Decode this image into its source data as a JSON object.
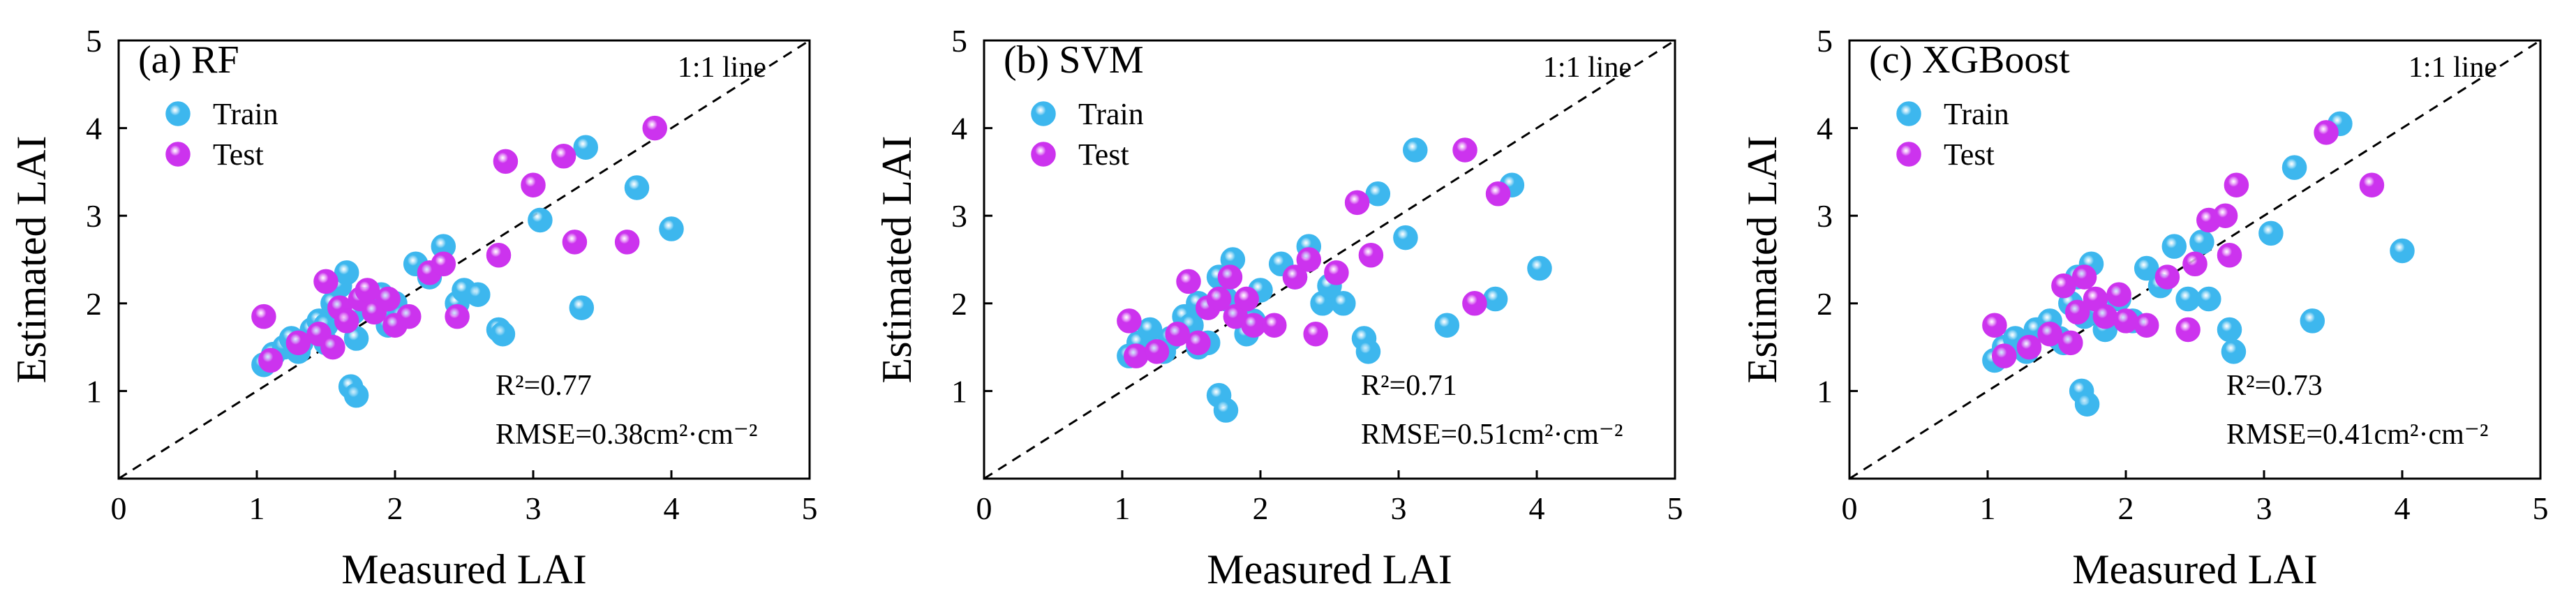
{
  "chart_data": [
    {
      "type": "scatter",
      "panel_label": "(a)",
      "title": "RF",
      "xlabel": "Measured LAI",
      "ylabel": "Estimated LAI",
      "xlim": [
        0,
        5
      ],
      "ylim": [
        0,
        5
      ],
      "ticks": [
        0,
        1,
        2,
        3,
        4,
        5
      ],
      "x_tick_labels": [
        "0",
        "1",
        "2",
        "3",
        "4",
        "5"
      ],
      "y_tick_labels": [
        "1",
        "2",
        "3",
        "4",
        "5"
      ],
      "reference_line": "1:1 line",
      "r2": "R²=0.77",
      "rmse": "RMSE=0.38cm²·cm⁻²",
      "series": [
        {
          "name": "Train",
          "color": "#3db7ee",
          "points": [
            [
              1.05,
              1.3
            ],
            [
              1.12,
              1.42
            ],
            [
              1.2,
              1.5
            ],
            [
              1.25,
              1.6
            ],
            [
              1.32,
              1.55
            ],
            [
              1.4,
              1.7
            ],
            [
              1.45,
              1.8
            ],
            [
              1.5,
              1.75
            ],
            [
              1.55,
              2.0
            ],
            [
              1.6,
              2.2
            ],
            [
              1.65,
              2.35
            ],
            [
              1.7,
              1.9
            ],
            [
              1.72,
              1.6
            ],
            [
              1.78,
              2.05
            ],
            [
              1.85,
              1.95
            ],
            [
              1.9,
              2.1
            ],
            [
              1.95,
              1.75
            ],
            [
              2.0,
              2.0
            ],
            [
              2.05,
              1.85
            ],
            [
              2.15,
              2.45
            ],
            [
              2.25,
              2.3
            ],
            [
              2.35,
              2.65
            ],
            [
              2.45,
              2.0
            ],
            [
              2.5,
              2.15
            ],
            [
              2.6,
              2.1
            ],
            [
              2.75,
              1.7
            ],
            [
              2.78,
              1.65
            ],
            [
              3.05,
              2.95
            ],
            [
              3.35,
              1.95
            ],
            [
              3.38,
              3.78
            ],
            [
              3.75,
              3.32
            ],
            [
              4.0,
              2.85
            ],
            [
              1.68,
              1.05
            ],
            [
              1.72,
              0.95
            ],
            [
              1.3,
              1.45
            ],
            [
              1.5,
              1.55
            ]
          ]
        },
        {
          "name": "Test",
          "color": "#cc33ee",
          "points": [
            [
              1.05,
              1.85
            ],
            [
              1.1,
              1.35
            ],
            [
              1.3,
              1.55
            ],
            [
              1.45,
              1.65
            ],
            [
              1.5,
              2.25
            ],
            [
              1.55,
              1.5
            ],
            [
              1.6,
              1.95
            ],
            [
              1.65,
              1.8
            ],
            [
              1.75,
              2.05
            ],
            [
              1.8,
              2.15
            ],
            [
              1.85,
              1.9
            ],
            [
              1.95,
              2.05
            ],
            [
              2.0,
              1.75
            ],
            [
              2.1,
              1.85
            ],
            [
              2.25,
              2.35
            ],
            [
              2.35,
              2.45
            ],
            [
              2.45,
              1.85
            ],
            [
              2.75,
              2.55
            ],
            [
              2.8,
              3.62
            ],
            [
              3.0,
              3.35
            ],
            [
              3.22,
              3.68
            ],
            [
              3.3,
              2.7
            ],
            [
              3.68,
              2.7
            ],
            [
              3.88,
              4.0
            ]
          ]
        }
      ]
    },
    {
      "type": "scatter",
      "panel_label": "(b)",
      "title": "SVM",
      "xlabel": "Measured LAI",
      "ylabel": "Estimated LAI",
      "xlim": [
        0,
        5
      ],
      "ylim": [
        0,
        5
      ],
      "ticks": [
        0,
        1,
        2,
        3,
        4,
        5
      ],
      "x_tick_labels": [
        "0",
        "1",
        "2",
        "3",
        "4",
        "5"
      ],
      "y_tick_labels": [
        "1",
        "2",
        "3",
        "4",
        "5"
      ],
      "reference_line": "1:1 line",
      "r2": "R²=0.71",
      "rmse": "RMSE=0.51cm²·cm⁻²",
      "series": [
        {
          "name": "Train",
          "color": "#3db7ee",
          "points": [
            [
              1.05,
              1.4
            ],
            [
              1.12,
              1.55
            ],
            [
              1.2,
              1.7
            ],
            [
              1.28,
              1.5
            ],
            [
              1.35,
              1.6
            ],
            [
              1.45,
              1.85
            ],
            [
              1.5,
              1.75
            ],
            [
              1.55,
              2.0
            ],
            [
              1.62,
              1.55
            ],
            [
              1.7,
              2.3
            ],
            [
              1.75,
              2.05
            ],
            [
              1.8,
              2.5
            ],
            [
              1.85,
              1.9
            ],
            [
              1.9,
              1.65
            ],
            [
              1.95,
              1.8
            ],
            [
              2.0,
              2.15
            ],
            [
              2.15,
              2.45
            ],
            [
              2.25,
              2.3
            ],
            [
              2.35,
              2.65
            ],
            [
              2.45,
              2.0
            ],
            [
              2.5,
              2.2
            ],
            [
              2.6,
              2.0
            ],
            [
              2.75,
              1.6
            ],
            [
              2.78,
              1.45
            ],
            [
              2.85,
              3.25
            ],
            [
              3.05,
              2.75
            ],
            [
              3.12,
              3.75
            ],
            [
              3.35,
              1.75
            ],
            [
              3.7,
              2.05
            ],
            [
              3.82,
              3.35
            ],
            [
              4.02,
              2.4
            ],
            [
              1.7,
              0.95
            ],
            [
              1.75,
              0.78
            ],
            [
              1.3,
              1.45
            ],
            [
              1.55,
              1.5
            ]
          ]
        },
        {
          "name": "Test",
          "color": "#cc33ee",
          "points": [
            [
              1.05,
              1.8
            ],
            [
              1.1,
              1.4
            ],
            [
              1.25,
              1.45
            ],
            [
              1.4,
              1.65
            ],
            [
              1.48,
              2.25
            ],
            [
              1.55,
              1.55
            ],
            [
              1.62,
              1.95
            ],
            [
              1.7,
              2.05
            ],
            [
              1.78,
              2.3
            ],
            [
              1.82,
              1.85
            ],
            [
              1.9,
              2.05
            ],
            [
              1.95,
              1.75
            ],
            [
              2.1,
              1.75
            ],
            [
              2.25,
              2.3
            ],
            [
              2.35,
              2.5
            ],
            [
              2.4,
              1.65
            ],
            [
              2.55,
              2.35
            ],
            [
              2.7,
              3.15
            ],
            [
              2.8,
              2.55
            ],
            [
              3.48,
              3.75
            ],
            [
              3.55,
              2.0
            ],
            [
              3.72,
              3.25
            ]
          ]
        }
      ]
    },
    {
      "type": "scatter",
      "panel_label": "(c)",
      "title": "XGBoost",
      "xlabel": "Measured LAI",
      "ylabel": "Estimated LAI",
      "xlim": [
        0,
        5
      ],
      "ylim": [
        0,
        5
      ],
      "ticks": [
        0,
        1,
        2,
        3,
        4,
        5
      ],
      "x_tick_labels": [
        "0",
        "1",
        "2",
        "3",
        "4",
        "5"
      ],
      "y_tick_labels": [
        "1",
        "2",
        "3",
        "4",
        "5"
      ],
      "reference_line": "1:1 line",
      "r2": "R²=0.73",
      "rmse": "RMSE=0.41cm²·cm⁻²",
      "series": [
        {
          "name": "Train",
          "color": "#3db7ee",
          "points": [
            [
              1.05,
              1.35
            ],
            [
              1.12,
              1.5
            ],
            [
              1.2,
              1.6
            ],
            [
              1.28,
              1.45
            ],
            [
              1.35,
              1.7
            ],
            [
              1.45,
              1.8
            ],
            [
              1.52,
              1.6
            ],
            [
              1.6,
              2.0
            ],
            [
              1.65,
              2.3
            ],
            [
              1.7,
              1.85
            ],
            [
              1.75,
              2.45
            ],
            [
              1.8,
              1.9
            ],
            [
              1.85,
              1.7
            ],
            [
              1.95,
              2.05
            ],
            [
              2.05,
              1.8
            ],
            [
              2.15,
              2.4
            ],
            [
              2.25,
              2.2
            ],
            [
              2.35,
              2.65
            ],
            [
              2.45,
              2.05
            ],
            [
              2.55,
              2.7
            ],
            [
              2.6,
              2.05
            ],
            [
              2.75,
              1.7
            ],
            [
              2.78,
              1.45
            ],
            [
              3.05,
              2.8
            ],
            [
              3.22,
              3.55
            ],
            [
              3.35,
              1.8
            ],
            [
              3.55,
              4.05
            ],
            [
              4.0,
              2.6
            ],
            [
              1.68,
              1.0
            ],
            [
              1.72,
              0.85
            ],
            [
              1.3,
              1.5
            ],
            [
              1.55,
              1.55
            ]
          ]
        },
        {
          "name": "Test",
          "color": "#cc33ee",
          "points": [
            [
              1.05,
              1.75
            ],
            [
              1.12,
              1.4
            ],
            [
              1.3,
              1.5
            ],
            [
              1.45,
              1.65
            ],
            [
              1.55,
              2.2
            ],
            [
              1.6,
              1.55
            ],
            [
              1.65,
              1.9
            ],
            [
              1.7,
              2.3
            ],
            [
              1.78,
              2.05
            ],
            [
              1.85,
              1.85
            ],
            [
              1.95,
              2.1
            ],
            [
              2.0,
              1.8
            ],
            [
              2.15,
              1.75
            ],
            [
              2.3,
              2.3
            ],
            [
              2.45,
              1.7
            ],
            [
              2.5,
              2.45
            ],
            [
              2.6,
              2.95
            ],
            [
              2.72,
              3.0
            ],
            [
              2.75,
              2.55
            ],
            [
              2.8,
              3.35
            ],
            [
              3.45,
              3.95
            ],
            [
              3.78,
              3.35
            ]
          ]
        }
      ]
    }
  ]
}
